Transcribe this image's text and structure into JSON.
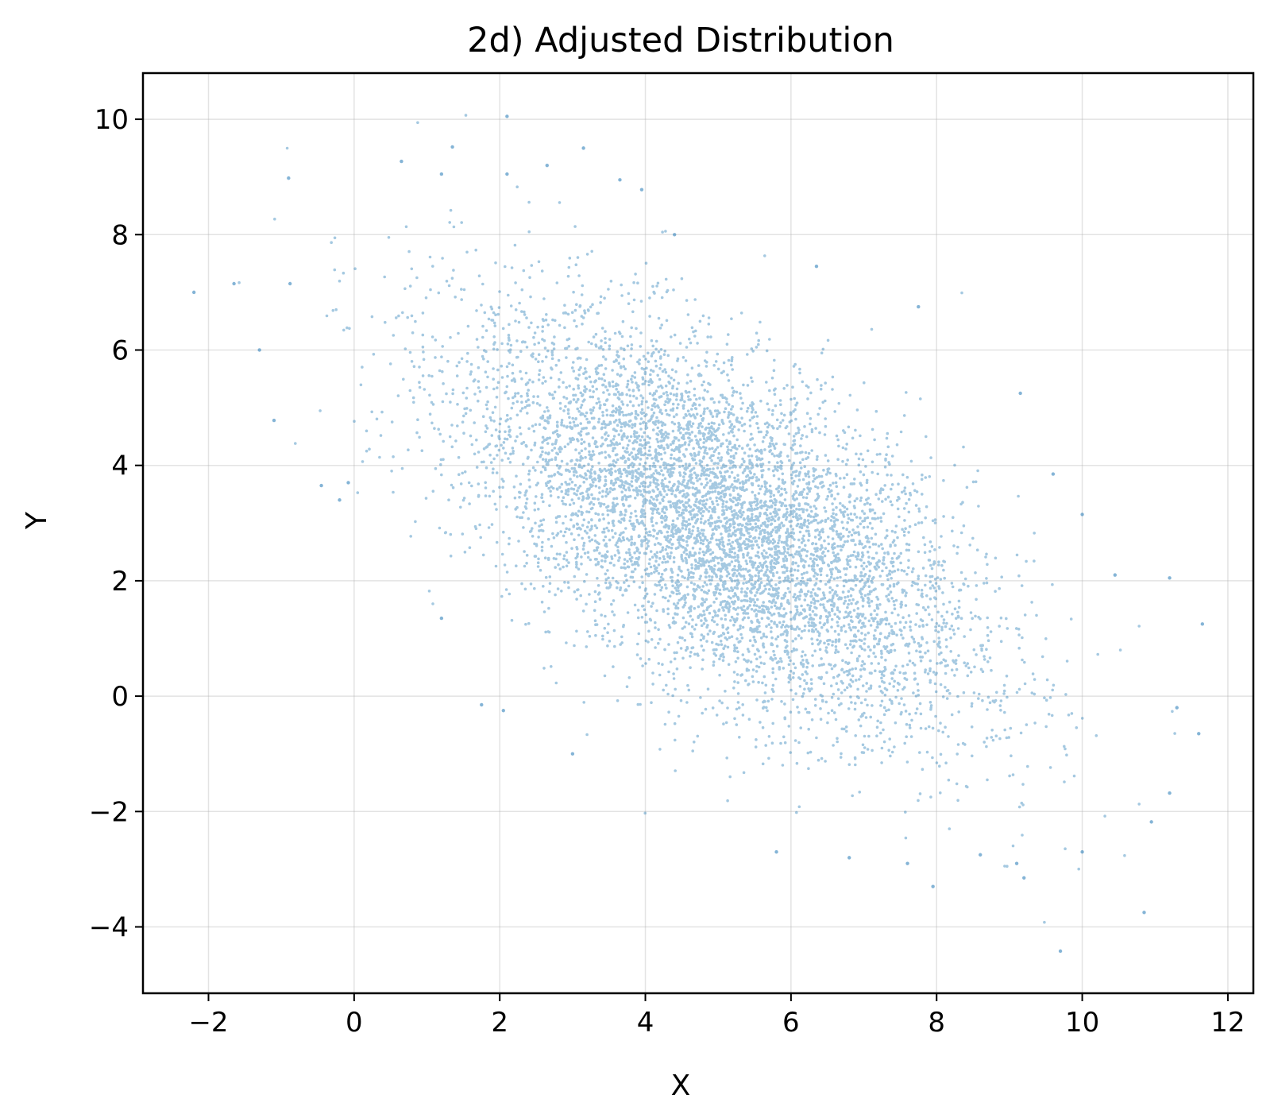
{
  "chart_data": {
    "type": "scatter",
    "title": "2d) Adjusted Distribution",
    "xlabel": "X",
    "ylabel": "Y",
    "xlim": [
      -2.9,
      12.35
    ],
    "ylim": [
      -5.15,
      10.8
    ],
    "x_ticks": [
      -2,
      0,
      2,
      4,
      6,
      8,
      10,
      12
    ],
    "y_ticks": [
      -4,
      -2,
      0,
      2,
      4,
      6,
      8,
      10
    ],
    "x_tick_labels": [
      "−2",
      "0",
      "2",
      "4",
      "6",
      "8",
      "10",
      "12"
    ],
    "y_tick_labels": [
      "−4",
      "−2",
      "0",
      "2",
      "4",
      "6",
      "8",
      "10"
    ],
    "grid": true,
    "legend": "none",
    "series": [
      {
        "color": "#1f77b4",
        "distribution": {
          "kind": "bivariate-normal",
          "mean": [
            5.0,
            3.0
          ],
          "std": [
            1.75,
            1.75
          ],
          "correlation": -0.6
        },
        "points": [
          [
            -2.2,
            7.0
          ],
          [
            -1.65,
            7.15
          ],
          [
            -0.9,
            8.98
          ],
          [
            -0.88,
            7.15
          ],
          [
            -1.1,
            4.78
          ],
          [
            -1.3,
            6.0
          ],
          [
            -0.45,
            3.65
          ],
          [
            -0.2,
            3.4
          ],
          [
            -0.08,
            3.7
          ],
          [
            2.1,
            10.05
          ],
          [
            2.1,
            9.05
          ],
          [
            1.35,
            9.52
          ],
          [
            3.15,
            9.5
          ],
          [
            2.65,
            9.2
          ],
          [
            3.95,
            8.78
          ],
          [
            3.65,
            8.95
          ],
          [
            0.65,
            9.27
          ],
          [
            1.2,
            9.05
          ],
          [
            4.4,
            8.0
          ],
          [
            6.35,
            7.45
          ],
          [
            7.75,
            6.75
          ],
          [
            9.15,
            5.25
          ],
          [
            9.6,
            3.85
          ],
          [
            10.0,
            3.15
          ],
          [
            10.45,
            2.1
          ],
          [
            11.2,
            2.05
          ],
          [
            11.65,
            1.25
          ],
          [
            11.3,
            -0.2
          ],
          [
            11.6,
            -0.65
          ],
          [
            11.2,
            -1.68
          ],
          [
            10.85,
            -3.75
          ],
          [
            9.7,
            -4.42
          ],
          [
            7.95,
            -3.3
          ],
          [
            10.0,
            -2.7
          ],
          [
            9.2,
            -3.15
          ],
          [
            10.95,
            -2.18
          ],
          [
            5.8,
            -2.7
          ],
          [
            6.8,
            -2.8
          ],
          [
            8.6,
            -2.75
          ],
          [
            9.1,
            -2.9
          ],
          [
            7.6,
            -2.9
          ],
          [
            3.0,
            -1.0
          ],
          [
            1.2,
            1.35
          ],
          [
            2.05,
            -0.25
          ],
          [
            1.75,
            -0.15
          ]
        ]
      }
    ]
  }
}
